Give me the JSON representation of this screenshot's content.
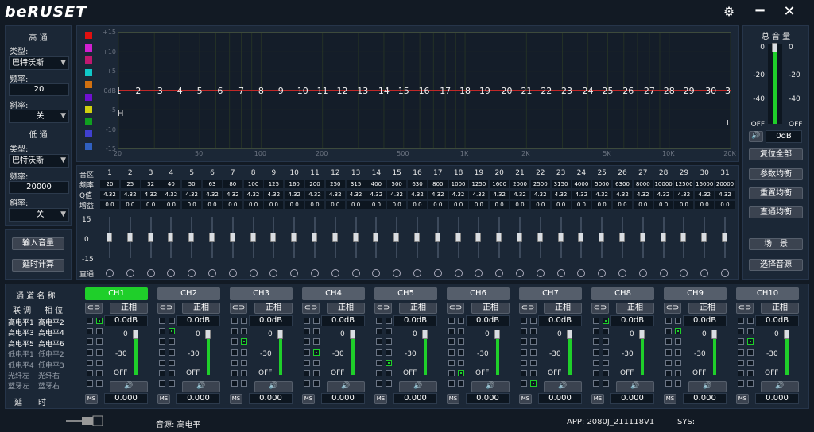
{
  "app": {
    "logo": "beRUSET"
  },
  "window": {
    "settings_icon": "gear-icon",
    "minimize_icon": "minimize-icon",
    "close_icon": "close-icon"
  },
  "highpass": {
    "title": "高 通",
    "type_label": "类型:",
    "type_value": "巴特沃斯",
    "freq_label": "频率:",
    "freq_value": "20",
    "slope_label": "斜率:",
    "slope_value": "关"
  },
  "lowpass": {
    "title": "低 通",
    "type_label": "类型:",
    "type_value": "巴特沃斯",
    "freq_label": "频率:",
    "freq_value": "20000",
    "slope_label": "斜率:",
    "slope_value": "关"
  },
  "left_buttons": {
    "input_volume": "输入音量",
    "delay_calc": "延时计算"
  },
  "graph": {
    "y_ticks": [
      "+15",
      "+10",
      "+5",
      "0dB",
      "-5",
      "-10",
      "-15"
    ],
    "x_ticks": [
      "20",
      "50",
      "100",
      "200",
      "500",
      "1K",
      "2K",
      "5K",
      "10K",
      "20K"
    ],
    "h_marker": "H",
    "l_marker": "L",
    "channel_colors": [
      "#e01010",
      "#d020d0",
      "#c01870",
      "#10c8c8",
      "#d07010",
      "#7010d0",
      "#d0d010",
      "#10a020",
      "#4040d0",
      "#3060c0"
    ]
  },
  "eq": {
    "row_labels": [
      "音区",
      "频率",
      "Q值",
      "增益"
    ],
    "bands": [
      "1",
      "2",
      "3",
      "4",
      "5",
      "6",
      "7",
      "8",
      "9",
      "10",
      "11",
      "12",
      "13",
      "14",
      "15",
      "16",
      "17",
      "18",
      "19",
      "20",
      "21",
      "22",
      "23",
      "24",
      "25",
      "26",
      "27",
      "28",
      "29",
      "30",
      "31"
    ],
    "freqs": [
      "20",
      "25",
      "32",
      "40",
      "50",
      "63",
      "80",
      "100",
      "125",
      "160",
      "200",
      "250",
      "315",
      "400",
      "500",
      "630",
      "800",
      "1000",
      "1250",
      "1600",
      "2000",
      "2500",
      "3150",
      "4000",
      "5000",
      "6300",
      "8000",
      "10000",
      "12500",
      "16000",
      "20000"
    ],
    "q": "4.32",
    "gain": "0.0",
    "scale": [
      "15",
      "0",
      "-15"
    ],
    "direct_label": "直通"
  },
  "master": {
    "title": "总 音 量",
    "scale_left": [
      "0",
      "-20",
      "-40",
      "OFF"
    ],
    "scale_right": [
      "0",
      "-20",
      "-40",
      "OFF"
    ],
    "value": "0dB",
    "reset_all": "复位全部",
    "param_eq": "参数均衡",
    "reset_eq": "重置均衡",
    "direct_eq": "直通均衡",
    "scene": "场　景",
    "select_source": "选择音源"
  },
  "channel_panel": {
    "title": "通 道 名 称",
    "link_label": "联 调",
    "phase_label": "相 位",
    "inputs": [
      [
        "高电平1",
        "高电平2"
      ],
      [
        "高电平3",
        "高电平4"
      ],
      [
        "高电平5",
        "高电平6"
      ],
      [
        "低电平1",
        "低电平2"
      ],
      [
        "低电平4",
        "低电平3"
      ],
      [
        "光纤左",
        "光纤右"
      ],
      [
        "蓝牙左",
        "蓝牙右"
      ]
    ],
    "delay_label": "延　　时"
  },
  "channels": [
    {
      "name": "CH1",
      "active": true
    },
    {
      "name": "CH2"
    },
    {
      "name": "CH3"
    },
    {
      "name": "CH4"
    },
    {
      "name": "CH5"
    },
    {
      "name": "CH6"
    },
    {
      "name": "CH7"
    },
    {
      "name": "CH8"
    },
    {
      "name": "CH9"
    },
    {
      "name": "CH10"
    }
  ],
  "channel_common": {
    "phase": "正相",
    "gain": "0.0dB",
    "scale_top": "0",
    "scale_mid": "-30",
    "scale_off": "OFF",
    "mute": "MS",
    "delay": "0.000"
  },
  "status": {
    "source_label": "音源: 高电平",
    "app_version": "APP: 2080J_211118V1",
    "sys_label": "SYS:"
  }
}
